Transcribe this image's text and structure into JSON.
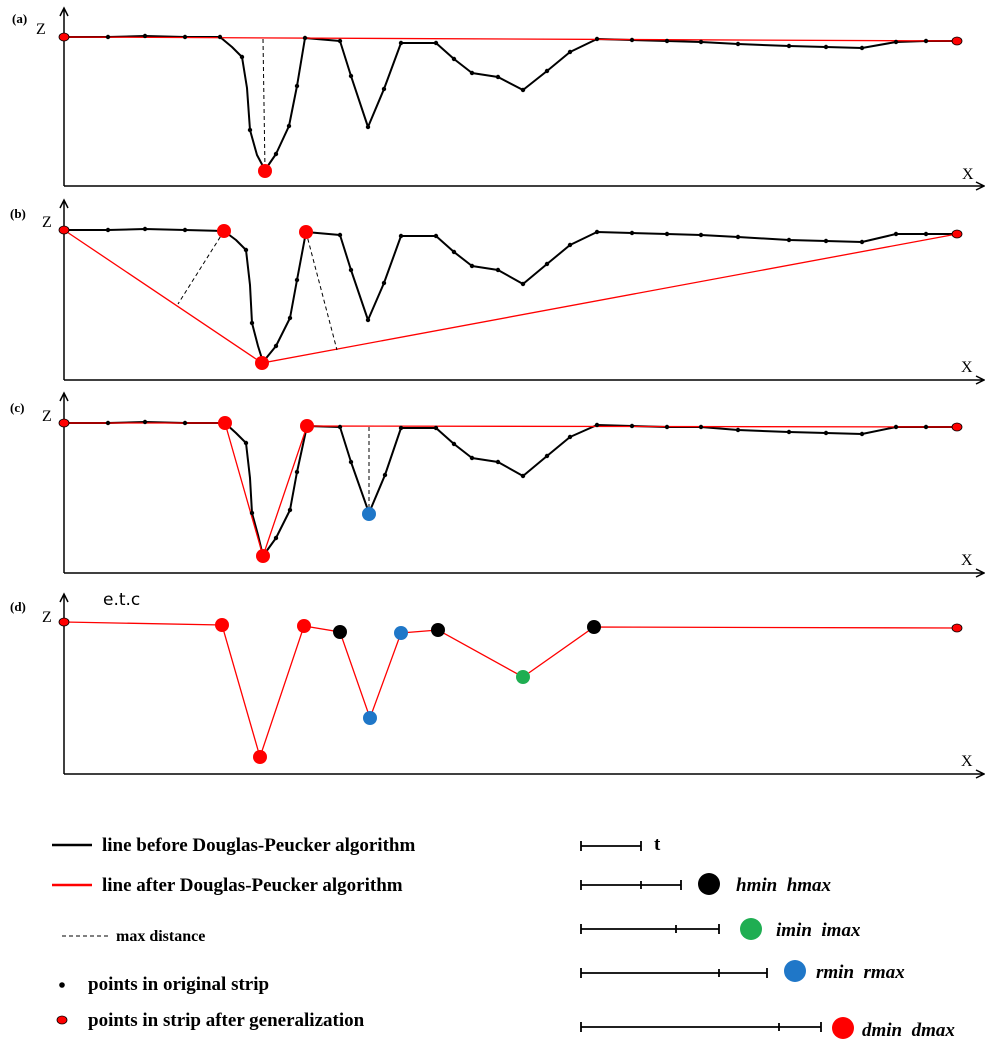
{
  "panels": [
    {
      "label": "(a)",
      "z": "Z",
      "x": "X"
    },
    {
      "label": "(b)",
      "z": "Z",
      "x": "X"
    },
    {
      "label": "(c)",
      "z": "Z",
      "x": "X"
    },
    {
      "label": "(d)",
      "z": "Z",
      "x": "X",
      "note": "e.t.c"
    }
  ],
  "legend": {
    "black_line": "line before Douglas-Peucker algorithm",
    "red_line": "line after Douglas-Peucker algorithm",
    "dashed": "max distance",
    "black_dot": "points in original strip",
    "red_dot": "points in strip after generalization",
    "scales": [
      {
        "label": "t",
        "color": ""
      },
      {
        "label": "hmin  hmax",
        "color": "#000000"
      },
      {
        "label": "imin  imax",
        "color": "#1fae52"
      },
      {
        "label": "rmin  rmax",
        "color": "#1f77c8"
      },
      {
        "label": "dmin  dmax",
        "color": "#ff0000"
      }
    ]
  },
  "colors": {
    "original": "#000000",
    "generalized": "#ff0000",
    "h_point": "#000000",
    "i_point": "#1fae52",
    "r_point": "#1f77c8",
    "d_point": "#ff0000"
  }
}
